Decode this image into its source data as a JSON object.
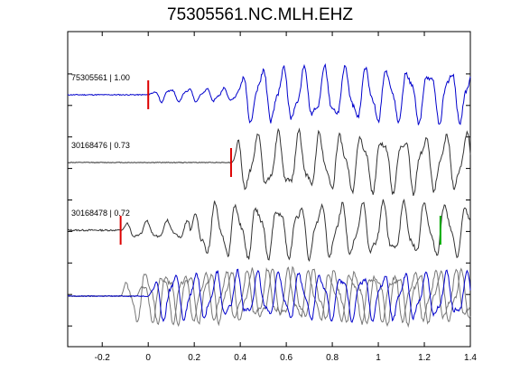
{
  "chart_data": {
    "type": "line",
    "title": "75305561.NC.MLH.EHZ",
    "xlabel": "",
    "ylabel": "",
    "xlim": [
      -0.35,
      1.4
    ],
    "xticks": [
      -0.2,
      0,
      0.2,
      0.4,
      0.6,
      0.8,
      1,
      1.2,
      1.4
    ],
    "xtick_labels": [
      "-0.2",
      "0",
      "0.2",
      "0.4",
      "0.6",
      "0.8",
      "1",
      "1.2",
      "1.4"
    ],
    "grid": false,
    "traces": [
      {
        "label": "75305561 | 1.00",
        "color": "#0000cc",
        "onset": 0.0,
        "picks": [
          {
            "t": 0.0,
            "color": "#dd0000"
          }
        ],
        "noise": 0.03,
        "segments": [
          {
            "t0": 0.0,
            "t1": 0.38,
            "amp": 0.22,
            "f": 13,
            "seed": 1
          },
          {
            "t0": 0.38,
            "t1": 1.4,
            "amp": 0.9,
            "f": 11,
            "seed": 2
          }
        ]
      },
      {
        "label": "30168476 | 0.73",
        "color": "#333333",
        "onset": 0.36,
        "picks": [
          {
            "t": 0.36,
            "color": "#dd0000"
          }
        ],
        "noise": 0.02,
        "segments": [
          {
            "t0": 0.36,
            "t1": 1.4,
            "amp": 0.95,
            "f": 11,
            "seed": 3
          }
        ]
      },
      {
        "label": "30168478 | 0.72",
        "color": "#333333",
        "onset": -0.12,
        "picks": [
          {
            "t": -0.12,
            "color": "#dd0000"
          },
          {
            "t": 1.27,
            "color": "#00aa00"
          }
        ],
        "noise": 0.05,
        "segments": [
          {
            "t0": -0.12,
            "t1": 0.18,
            "amp": 0.3,
            "f": 11,
            "seed": 4
          },
          {
            "t0": 0.18,
            "t1": 1.4,
            "amp": 0.9,
            "f": 11,
            "seed": 5
          }
        ]
      }
    ],
    "overlay": {
      "grey_color": "#777777",
      "blue_color": "#0000cc",
      "noise": 0.03,
      "grey_traces": [
        {
          "onset": -0.12,
          "amp": 0.95,
          "f": 11,
          "seed": 6
        },
        {
          "onset": -0.05,
          "amp": 0.9,
          "f": 11,
          "seed": 7
        }
      ],
      "blue_trace": {
        "onset": 0.0,
        "amp": 0.85,
        "f": 11,
        "seed": 8
      }
    }
  }
}
